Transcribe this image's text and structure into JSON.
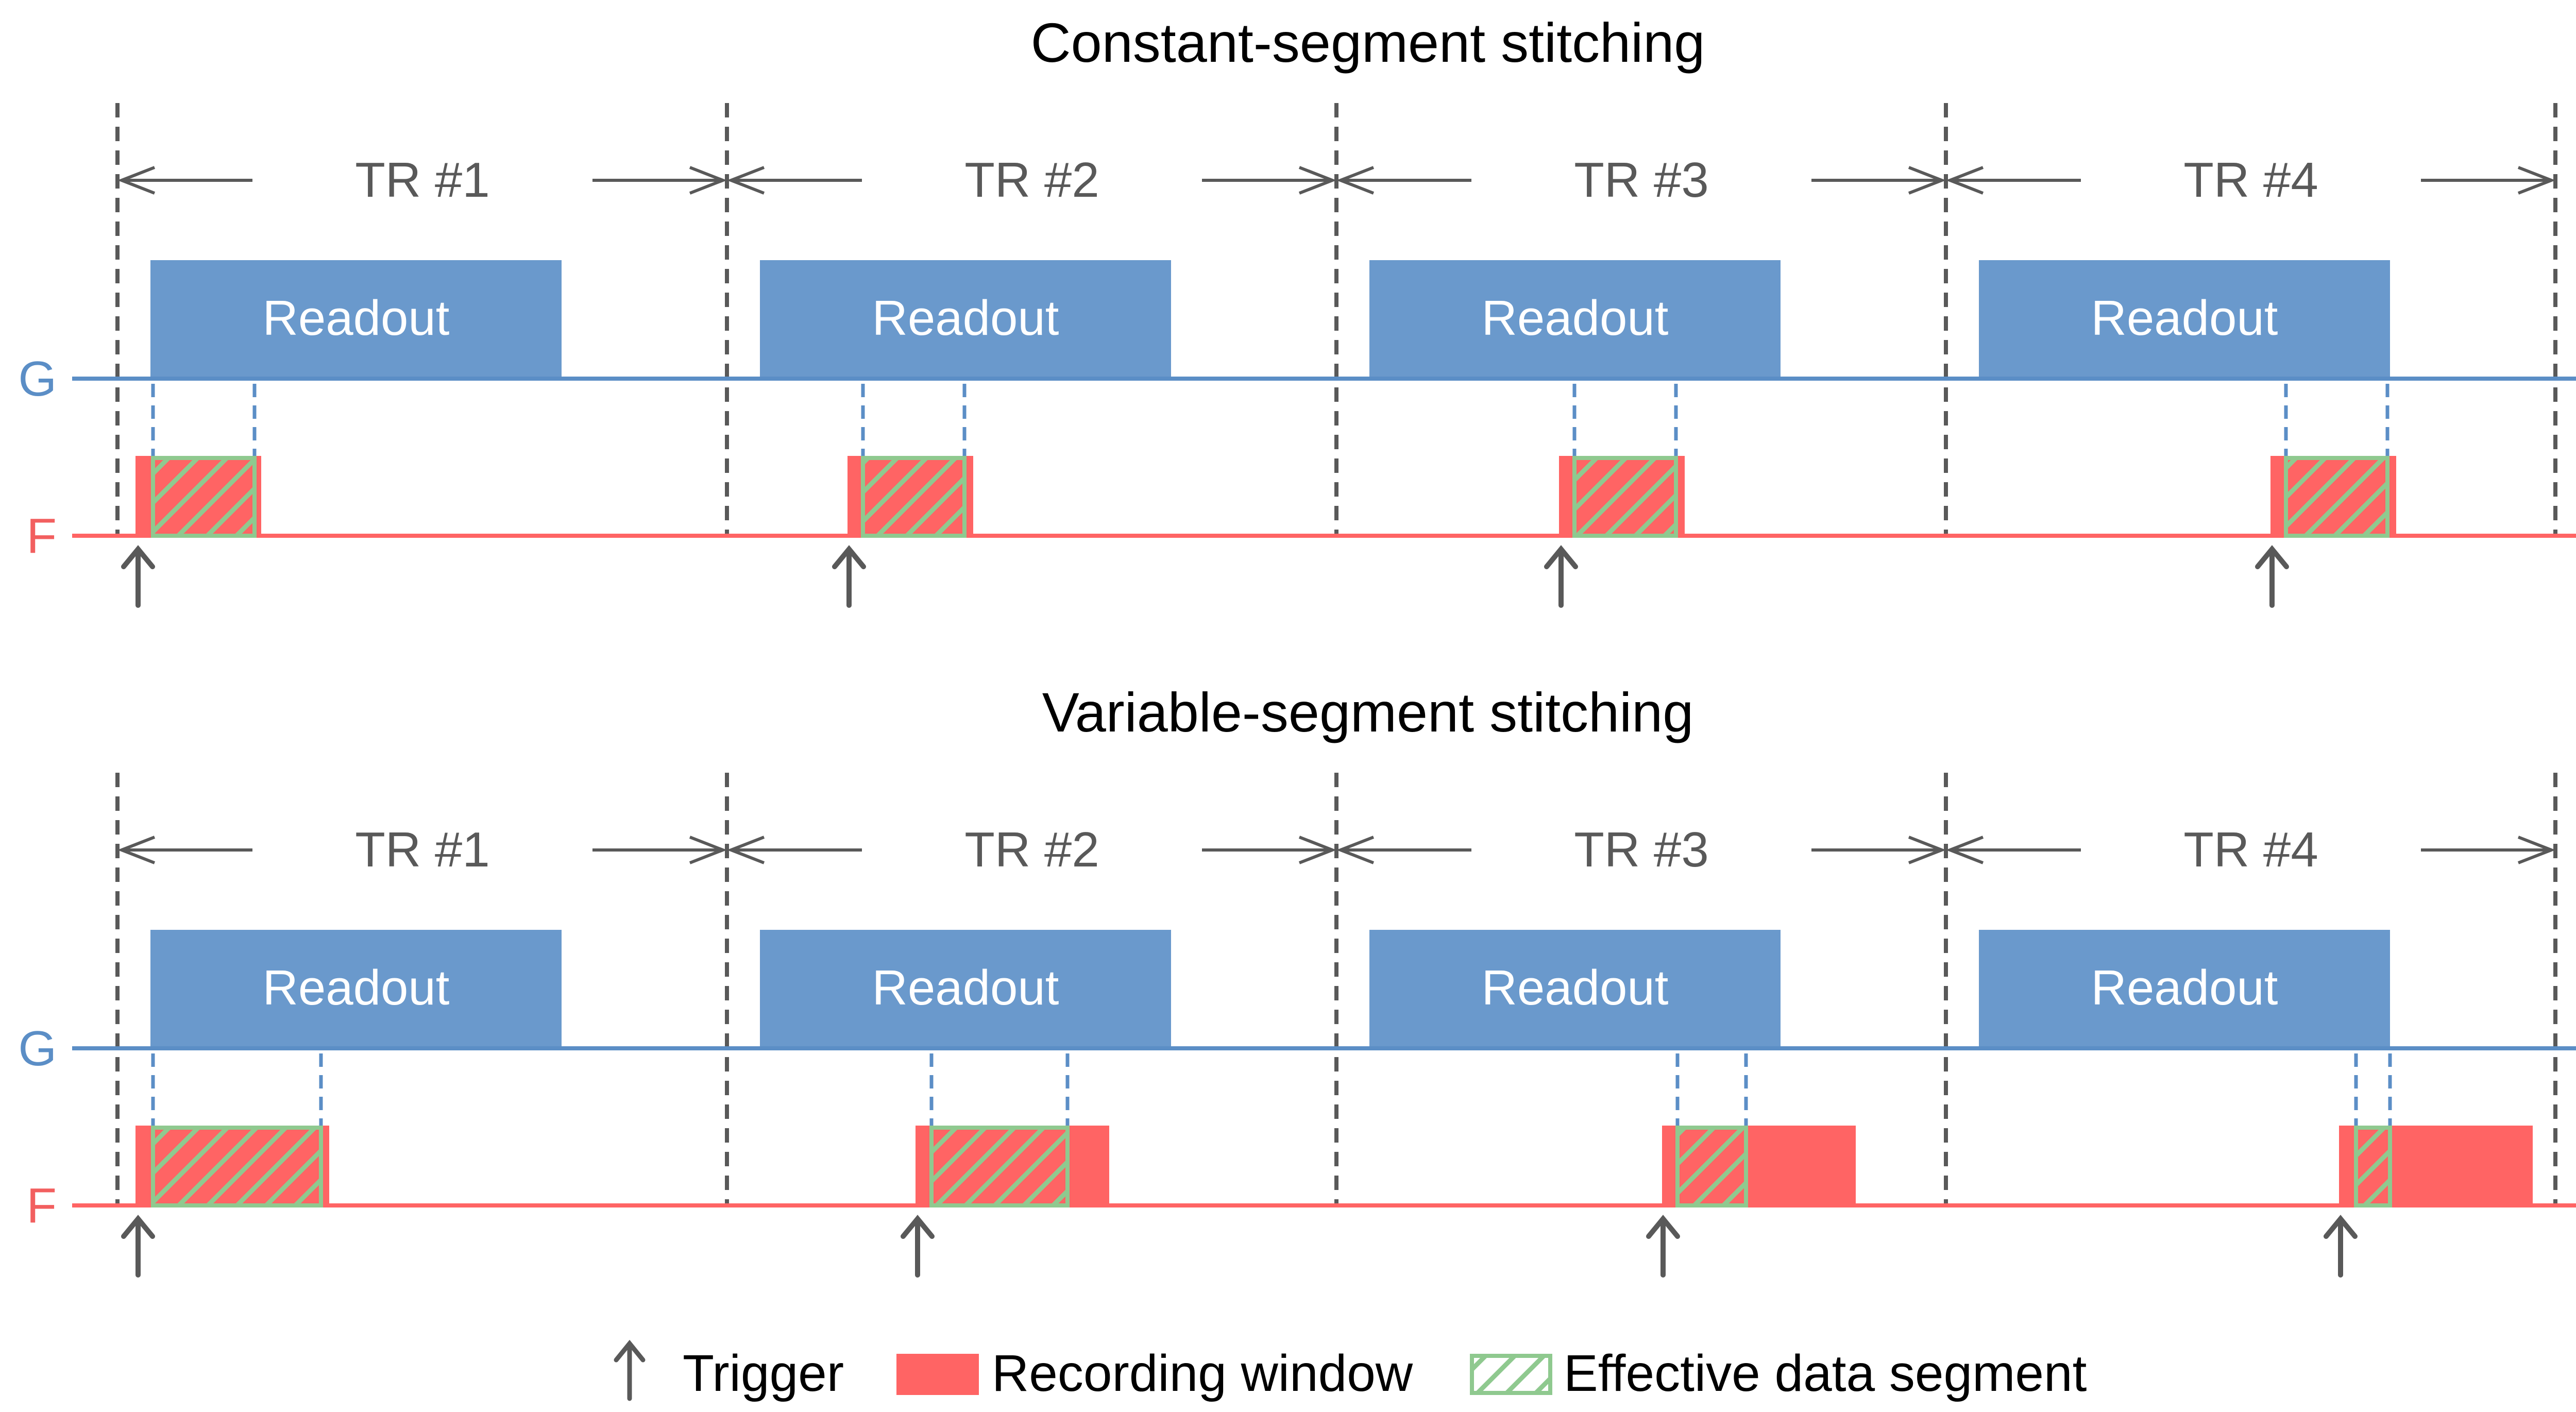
{
  "colors": {
    "gradient_line": "#5b8ec6",
    "readout_fill": "#6a99cc",
    "recording_fill": "#ff6464",
    "effective_stroke": "#8fc98f",
    "divider": "#595959",
    "text_dark": "#595959"
  },
  "icons": {
    "trigger": "up-arrow-icon",
    "time_span": "double-headed-arrow-icon"
  },
  "panels": [
    {
      "id": "constant",
      "title": "Constant-segment stitching",
      "g_label": "G",
      "f_label": "F",
      "ellipsis": "···",
      "trs": [
        {
          "label": "TR #1",
          "readout_label": "Readout"
        },
        {
          "label": "TR #2",
          "readout_label": "Readout"
        },
        {
          "label": "TR #3",
          "readout_label": "Readout"
        },
        {
          "label": "TR #4",
          "readout_label": "Readout"
        }
      ]
    },
    {
      "id": "variable",
      "title": "Variable-segment stitching",
      "g_label": "G",
      "f_label": "F",
      "ellipsis": "···",
      "trs": [
        {
          "label": "TR #1",
          "readout_label": "Readout"
        },
        {
          "label": "TR #2",
          "readout_label": "Readout"
        },
        {
          "label": "TR #3",
          "readout_label": "Readout"
        },
        {
          "label": "TR #4",
          "readout_label": "Readout"
        }
      ]
    }
  ],
  "legend": {
    "trigger": "Trigger",
    "recording": "Recording window",
    "effective": "Effective data segment"
  }
}
